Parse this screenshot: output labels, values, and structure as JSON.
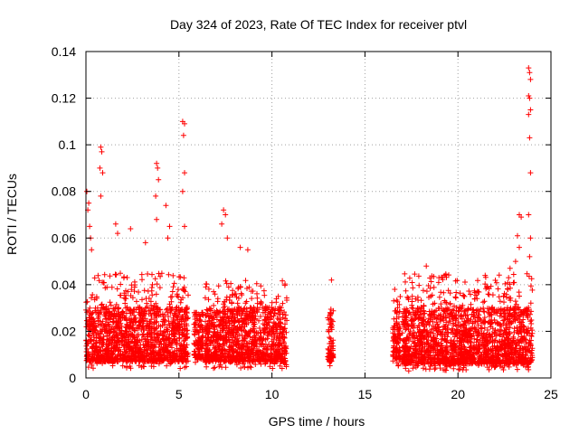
{
  "chart_data": {
    "type": "scatter",
    "title": "Day 324 of 2023, Rate Of TEC Index for receiver ptvl",
    "xlabel": "GPS time / hours",
    "ylabel": "ROTI / TECUs",
    "xlim": [
      0,
      25
    ],
    "ylim": [
      0,
      0.14
    ],
    "x_ticks": [
      "0",
      "5",
      "10",
      "15",
      "20",
      "25"
    ],
    "y_ticks": [
      "0",
      "0.02",
      "0.04",
      "0.06",
      "0.08",
      "0.1",
      "0.12",
      "0.14"
    ],
    "grid": true,
    "marker": "plus",
    "color": "#ff0000",
    "series": [
      {
        "segments": [
          {
            "x_start": 0.0,
            "x_end": 5.5,
            "y_min": 0.004,
            "y_max": 0.045
          },
          {
            "x_start": 5.8,
            "x_end": 6.3,
            "y_min": 0.005,
            "y_max": 0.028
          },
          {
            "x_start": 6.4,
            "x_end": 10.8,
            "y_min": 0.004,
            "y_max": 0.042
          },
          {
            "x_start": 13.0,
            "x_end": 13.3,
            "y_min": 0.004,
            "y_max": 0.035
          },
          {
            "x_start": 16.5,
            "x_end": 16.9,
            "y_min": 0.005,
            "y_max": 0.036
          },
          {
            "x_start": 17.0,
            "x_end": 24.0,
            "y_min": 0.003,
            "y_max": 0.045
          }
        ],
        "highlights": [
          [
            0.1,
            0.072
          ],
          [
            0.15,
            0.075
          ],
          [
            0.2,
            0.065
          ],
          [
            0.25,
            0.06
          ],
          [
            0.3,
            0.055
          ],
          [
            0.05,
            0.08
          ],
          [
            0.8,
            0.099
          ],
          [
            0.85,
            0.097
          ],
          [
            0.75,
            0.09
          ],
          [
            0.9,
            0.088
          ],
          [
            0.8,
            0.078
          ],
          [
            1.6,
            0.066
          ],
          [
            1.7,
            0.062
          ],
          [
            2.4,
            0.064
          ],
          [
            3.2,
            0.058
          ],
          [
            3.8,
            0.092
          ],
          [
            3.85,
            0.09
          ],
          [
            3.9,
            0.085
          ],
          [
            3.75,
            0.078
          ],
          [
            3.8,
            0.068
          ],
          [
            4.3,
            0.074
          ],
          [
            4.5,
            0.065
          ],
          [
            4.4,
            0.06
          ],
          [
            5.2,
            0.11
          ],
          [
            5.3,
            0.109
          ],
          [
            5.25,
            0.104
          ],
          [
            5.3,
            0.088
          ],
          [
            5.2,
            0.08
          ],
          [
            5.3,
            0.065
          ],
          [
            7.4,
            0.072
          ],
          [
            7.5,
            0.07
          ],
          [
            7.3,
            0.066
          ],
          [
            7.6,
            0.06
          ],
          [
            8.3,
            0.056
          ],
          [
            8.7,
            0.055
          ],
          [
            13.2,
            0.042
          ],
          [
            16.6,
            0.038
          ],
          [
            18.3,
            0.048
          ],
          [
            23.3,
            0.07
          ],
          [
            23.4,
            0.069
          ],
          [
            23.2,
            0.061
          ],
          [
            23.3,
            0.056
          ],
          [
            23.8,
            0.133
          ],
          [
            23.85,
            0.131
          ],
          [
            23.9,
            0.128
          ],
          [
            23.8,
            0.121
          ],
          [
            23.85,
            0.12
          ],
          [
            23.9,
            0.115
          ],
          [
            23.8,
            0.113
          ],
          [
            23.85,
            0.103
          ],
          [
            23.9,
            0.088
          ],
          [
            23.8,
            0.07
          ],
          [
            23.9,
            0.06
          ],
          [
            23.85,
            0.052
          ],
          [
            23.1,
            0.05
          ],
          [
            22.8,
            0.047
          ]
        ]
      }
    ]
  }
}
